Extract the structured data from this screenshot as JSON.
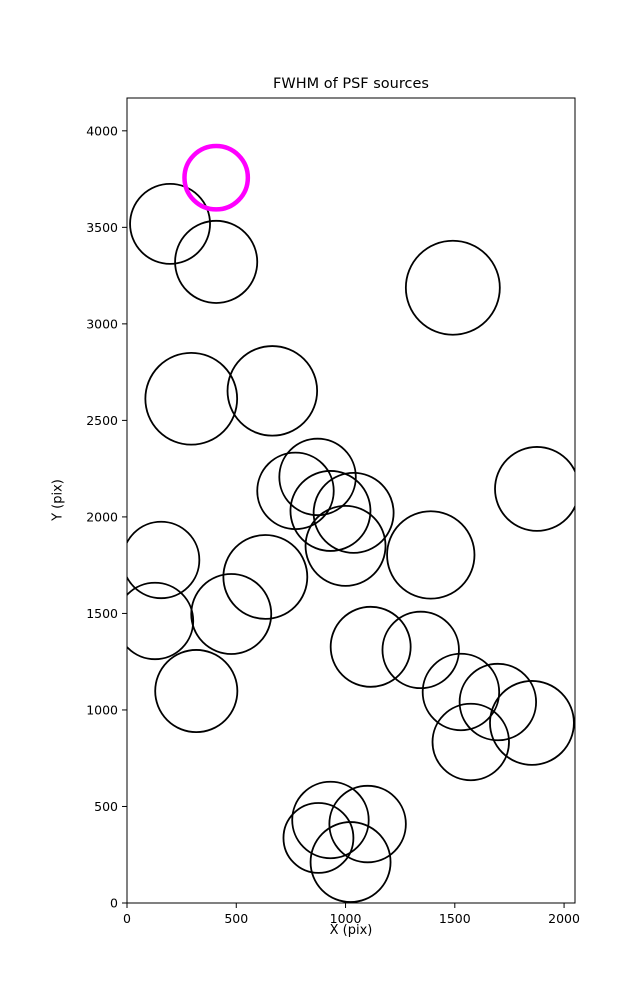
{
  "title": "FWHM of PSF sources",
  "chart_data": {
    "type": "scatter",
    "title": "FWHM of PSF sources",
    "xlabel": "X (pix)",
    "ylabel": "Y (pix)",
    "xlim": [
      0,
      2050
    ],
    "ylim": [
      0,
      4170
    ],
    "xticks": [
      0,
      500,
      1000,
      1500,
      2000
    ],
    "yticks": [
      0,
      500,
      1000,
      1500,
      2000,
      2500,
      3000,
      3500,
      4000
    ],
    "grid": false,
    "legend": "none",
    "marker": "circle-outline",
    "colors": {
      "default": "#000000",
      "highlight": "#ff00ff"
    },
    "points": [
      {
        "x": 197,
        "y": 3518,
        "r": 183
      },
      {
        "x": 408,
        "y": 3321,
        "r": 188
      },
      {
        "x": 1491,
        "y": 3187,
        "r": 215
      },
      {
        "x": 294,
        "y": 2612,
        "r": 210
      },
      {
        "x": 665,
        "y": 2653,
        "r": 205
      },
      {
        "x": 771,
        "y": 2135,
        "r": 175
      },
      {
        "x": 872,
        "y": 2207,
        "r": 175
      },
      {
        "x": 931,
        "y": 2031,
        "r": 183
      },
      {
        "x": 1037,
        "y": 2021,
        "r": 183
      },
      {
        "x": 1000,
        "y": 1850,
        "r": 183
      },
      {
        "x": 156,
        "y": 1777,
        "r": 175
      },
      {
        "x": 633,
        "y": 1689,
        "r": 192
      },
      {
        "x": 128,
        "y": 1461,
        "r": 175
      },
      {
        "x": 477,
        "y": 1497,
        "r": 183
      },
      {
        "x": 317,
        "y": 1098,
        "r": 188
      },
      {
        "x": 1115,
        "y": 1327,
        "r": 183
      },
      {
        "x": 1344,
        "y": 1311,
        "r": 175
      },
      {
        "x": 1390,
        "y": 1803,
        "r": 200
      },
      {
        "x": 1528,
        "y": 1093,
        "r": 175
      },
      {
        "x": 1697,
        "y": 1041,
        "r": 175
      },
      {
        "x": 1573,
        "y": 834,
        "r": 175
      },
      {
        "x": 1853,
        "y": 933,
        "r": 192
      },
      {
        "x": 1876,
        "y": 2145,
        "r": 192
      },
      {
        "x": 876,
        "y": 337,
        "r": 160
      },
      {
        "x": 931,
        "y": 430,
        "r": 175
      },
      {
        "x": 1101,
        "y": 409,
        "r": 175
      },
      {
        "x": 1023,
        "y": 212,
        "r": 183
      },
      {
        "x": 408,
        "y": 3757,
        "r": 145,
        "highlight": true
      }
    ]
  }
}
